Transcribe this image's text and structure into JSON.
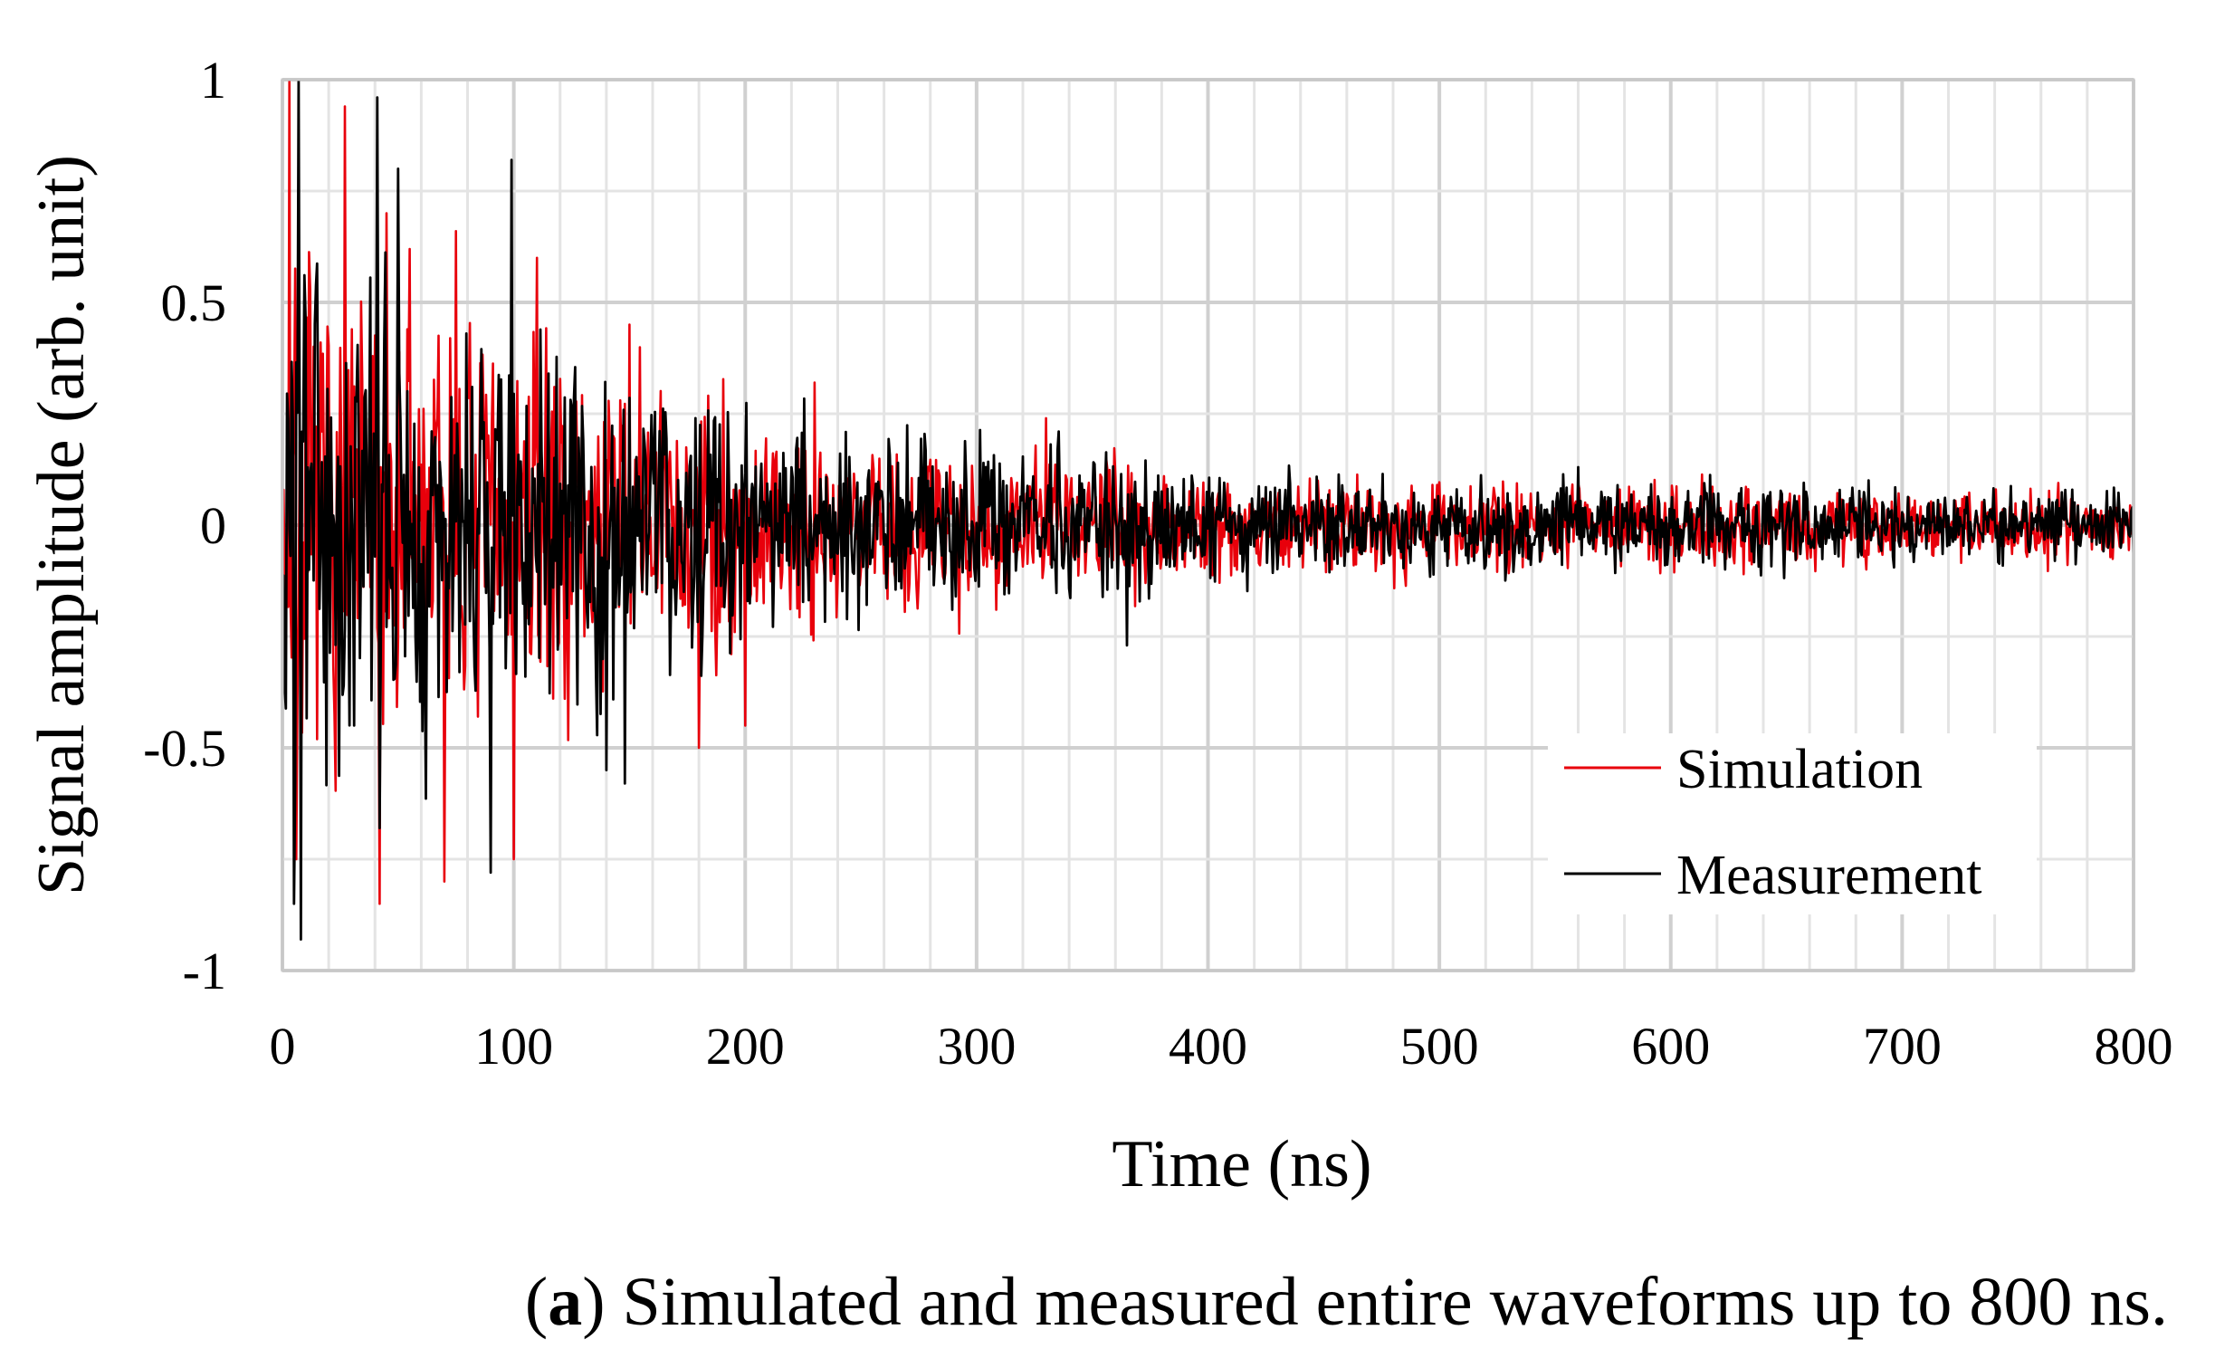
{
  "chart_data": {
    "type": "line",
    "title": "",
    "xlabel": "Time (ns)",
    "ylabel": "Signal amplitude (arb. unit)",
    "xlim": [
      0,
      800
    ],
    "ylim": [
      -1,
      1
    ],
    "x_ticks": [
      "0",
      "100",
      "200",
      "300",
      "400",
      "500",
      "600",
      "700",
      "800"
    ],
    "y_ticks": [
      "1",
      "0.5",
      "0",
      "-0.5",
      "-1"
    ],
    "x_minor_step": 20,
    "y_minor_step": 0.25,
    "grid": true,
    "legend_position": "bottom-right",
    "sample_step_ns": 0.5,
    "envelope": {
      "time_ns": [
        0,
        10,
        50,
        100,
        150,
        200,
        250,
        300,
        350,
        400,
        450,
        500,
        550,
        600,
        650,
        700,
        750,
        800
      ],
      "amplitude": [
        0.55,
        0.45,
        0.4,
        0.36,
        0.3,
        0.23,
        0.18,
        0.15,
        0.12,
        0.1,
        0.09,
        0.085,
        0.08,
        0.08,
        0.075,
        0.07,
        0.065,
        0.06
      ]
    },
    "series": [
      {
        "name": "Simulation",
        "color": "#e8000b",
        "seed": 7,
        "peaks": [
          [
            3,
            1.0
          ],
          [
            6,
            -0.75
          ],
          [
            27,
            0.94
          ],
          [
            42,
            -0.85
          ],
          [
            45,
            0.7
          ],
          [
            55,
            0.62
          ],
          [
            70,
            -0.8
          ],
          [
            75,
            0.66
          ],
          [
            100,
            -0.75
          ],
          [
            110,
            0.6
          ],
          [
            150,
            0.45
          ],
          [
            180,
            -0.5
          ],
          [
            200,
            -0.45
          ],
          [
            230,
            0.32
          ],
          [
            330,
            0.24
          ]
        ]
      },
      {
        "name": "Measurement",
        "color": "#000000",
        "seed": 3,
        "peaks": [
          [
            5,
            -0.85
          ],
          [
            7,
            1.0
          ],
          [
            8,
            -0.93
          ],
          [
            42,
            -0.68
          ],
          [
            41,
            0.96
          ],
          [
            50,
            0.8
          ],
          [
            90,
            -0.78
          ],
          [
            99,
            0.82
          ],
          [
            140,
            -0.55
          ],
          [
            148,
            -0.58
          ],
          [
            365,
            -0.27
          ],
          [
            560,
            0.13
          ]
        ]
      }
    ]
  },
  "legend": {
    "items": [
      {
        "name": "Simulation",
        "color": "#e8000b"
      },
      {
        "name": "Measurement",
        "color": "#000000"
      }
    ]
  },
  "caption": {
    "label": "a",
    "text": "Simulated and measured entire waveforms up to 800 ns."
  }
}
